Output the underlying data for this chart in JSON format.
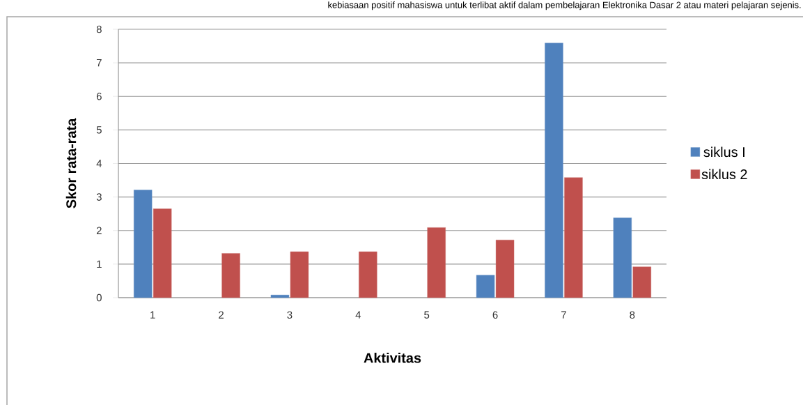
{
  "chart_data": {
    "type": "bar",
    "xlabel": "Aktivitas",
    "ylabel": "Skor rata-rata",
    "annotations": [
      "kebiasaan positif mahasiswa untuk terlibat aktif dalam pembelajaran Elektronika Dasar 2 atau materi pelajaran sejenis."
    ],
    "categories": [
      "1",
      "2",
      "3",
      "4",
      "5",
      "6",
      "7",
      "8"
    ],
    "series": [
      {
        "name": "siklus I",
        "color": "#4f81bd",
        "values": [
          3.21,
          null,
          0.08,
          null,
          null,
          0.67,
          7.59,
          2.38
        ]
      },
      {
        "name": "siklus 2",
        "color": "#c0504d",
        "values": [
          2.65,
          1.32,
          1.37,
          1.37,
          2.09,
          1.72,
          3.58,
          0.92
        ]
      }
    ],
    "ylim": [
      0,
      8
    ],
    "yticks": [
      0,
      1,
      2,
      3,
      4,
      5,
      6,
      7,
      8
    ],
    "grid": "y",
    "legend": "right"
  }
}
